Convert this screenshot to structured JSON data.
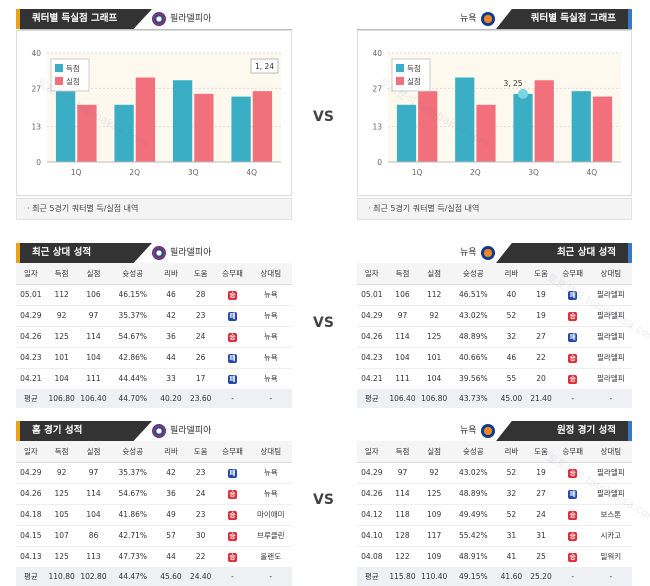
{
  "colors": {
    "win": "#e02d3a",
    "loss": "#2549a8",
    "for": "#3aaec4",
    "against": "#f2707c",
    "accent": "#e8a317"
  },
  "vs": "VS",
  "watermark": "토토분석 totobaksa.com",
  "quarter_graph": {
    "title": "쿼터별 득실점 그래프",
    "legend_for": "득점",
    "legend_against": "실점",
    "note": "최근 5경기 쿼터별 득/실점 내역"
  },
  "recent_title": "최근 상대 성적",
  "home_title": "홈 경기 성적",
  "away_title": "원정 경기 성적",
  "teams": {
    "left": "필라델피아",
    "right": "뉴욕"
  },
  "headers": [
    "일자",
    "득점",
    "실점",
    "슛성공",
    "리바",
    "도움",
    "승무패",
    "상대팀"
  ],
  "avg_label": "평균",
  "chart_data": [
    {
      "type": "bar",
      "team": "필라델피아",
      "categories": [
        "1Q",
        "2Q",
        "3Q",
        "4Q"
      ],
      "ylim": [
        0,
        40
      ],
      "yticks": [
        0,
        13,
        27,
        40
      ],
      "series": [
        {
          "name": "득점",
          "values": [
            26,
            21,
            30,
            24
          ]
        },
        {
          "name": "실점",
          "values": [
            21,
            31,
            25,
            26
          ]
        }
      ],
      "tooltip": "1, 24"
    },
    {
      "type": "bar",
      "team": "뉴욕",
      "categories": [
        "1Q",
        "2Q",
        "3Q",
        "4Q"
      ],
      "ylim": [
        0,
        40
      ],
      "yticks": [
        0,
        13,
        27,
        40
      ],
      "series": [
        {
          "name": "득점",
          "values": [
            21,
            31,
            25,
            26
          ]
        },
        {
          "name": "실점",
          "values": [
            26,
            21,
            30,
            24
          ]
        }
      ],
      "tooltip": "3, 25"
    }
  ],
  "recent_left": {
    "rows": [
      [
        "05.01",
        "112",
        "106",
        "46.15%",
        "46",
        "28",
        "승",
        "뉴욕"
      ],
      [
        "04.29",
        "92",
        "97",
        "35.37%",
        "42",
        "23",
        "패",
        "뉴욕"
      ],
      [
        "04.26",
        "125",
        "114",
        "54.67%",
        "36",
        "24",
        "승",
        "뉴욕"
      ],
      [
        "04.23",
        "101",
        "104",
        "42.86%",
        "44",
        "26",
        "패",
        "뉴욕"
      ],
      [
        "04.21",
        "104",
        "111",
        "44.44%",
        "33",
        "17",
        "패",
        "뉴욕"
      ]
    ],
    "avg": [
      "106.80",
      "106.40",
      "44.70%",
      "40.20",
      "23.60",
      "-",
      "-"
    ]
  },
  "recent_right": {
    "rows": [
      [
        "05.01",
        "106",
        "112",
        "46.51%",
        "40",
        "19",
        "패",
        "필라델피"
      ],
      [
        "04.29",
        "97",
        "92",
        "43.02%",
        "52",
        "19",
        "승",
        "필라델피"
      ],
      [
        "04.26",
        "114",
        "125",
        "48.89%",
        "32",
        "27",
        "패",
        "필라델피"
      ],
      [
        "04.23",
        "104",
        "101",
        "40.66%",
        "46",
        "22",
        "승",
        "필라델피"
      ],
      [
        "04.21",
        "111",
        "104",
        "39.56%",
        "55",
        "20",
        "승",
        "필라델피"
      ]
    ],
    "avg": [
      "106.40",
      "106.80",
      "43.73%",
      "45.00",
      "21.40",
      "-",
      "-"
    ]
  },
  "home_left": {
    "rows": [
      [
        "04.29",
        "92",
        "97",
        "35.37%",
        "42",
        "23",
        "패",
        "뉴욕"
      ],
      [
        "04.26",
        "125",
        "114",
        "54.67%",
        "36",
        "24",
        "승",
        "뉴욕"
      ],
      [
        "04.18",
        "105",
        "104",
        "41.86%",
        "49",
        "23",
        "승",
        "마이애미"
      ],
      [
        "04.15",
        "107",
        "86",
        "42.71%",
        "57",
        "30",
        "승",
        "브루클린"
      ],
      [
        "04.13",
        "125",
        "113",
        "47.73%",
        "44",
        "22",
        "승",
        "올랜도"
      ]
    ],
    "avg": [
      "110.80",
      "102.80",
      "44.47%",
      "45.60",
      "24.40",
      "-",
      "-"
    ]
  },
  "away_right": {
    "rows": [
      [
        "04.29",
        "97",
        "92",
        "43.02%",
        "52",
        "19",
        "승",
        "필라델피"
      ],
      [
        "04.26",
        "114",
        "125",
        "48.89%",
        "32",
        "27",
        "패",
        "필라델피"
      ],
      [
        "04.12",
        "118",
        "109",
        "49.49%",
        "52",
        "24",
        "승",
        "보스톤"
      ],
      [
        "04.10",
        "128",
        "117",
        "55.42%",
        "31",
        "31",
        "승",
        "시카고"
      ],
      [
        "04.08",
        "122",
        "109",
        "48.91%",
        "41",
        "25",
        "승",
        "밀워키"
      ]
    ],
    "avg": [
      "115.80",
      "110.40",
      "49.15%",
      "41.60",
      "25.20",
      "-",
      "-"
    ]
  }
}
